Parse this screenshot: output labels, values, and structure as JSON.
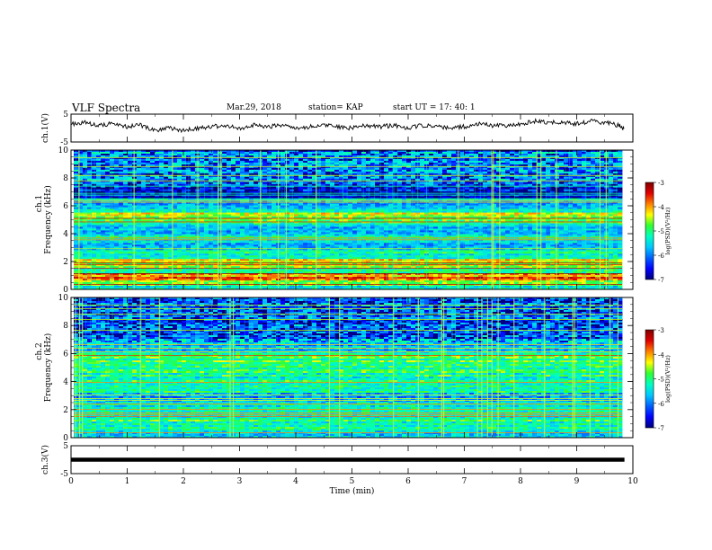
{
  "header": {
    "title": "VLF Spectra",
    "date": "Mar.29, 2018",
    "station": "station= KAP",
    "start": "start UT =   17: 40: 1"
  },
  "colors": {
    "colormap": [
      "#00007a",
      "#0000ff",
      "#0060ff",
      "#00c8ff",
      "#00ffc0",
      "#30ff30",
      "#ffff00",
      "#ff8000",
      "#e00000",
      "#800000"
    ],
    "trace": "#000000",
    "background": "#ffffff"
  },
  "chart_data": [
    {
      "type": "line",
      "panel": "ch1",
      "ylabel": "ch.1(V)",
      "ylim": [
        -5,
        5
      ],
      "yticks": [
        "5",
        "-5"
      ],
      "xlim": [
        0,
        10
      ],
      "x": [
        0,
        0.25,
        0.5,
        0.75,
        1,
        1.25,
        1.5,
        1.75,
        2,
        2.25,
        2.5,
        2.75,
        3,
        3.25,
        3.5,
        3.75,
        4,
        4.25,
        4.5,
        4.75,
        5,
        5.25,
        5.5,
        5.75,
        6,
        6.25,
        6.5,
        6.75,
        7,
        7.25,
        7.5,
        7.75,
        8,
        8.25,
        8.5,
        8.75,
        9,
        9.25,
        9.5,
        9.75,
        9.85
      ],
      "y": [
        1.5,
        2,
        1,
        1.5,
        0.5,
        1,
        -1,
        0,
        -1,
        0,
        0.5,
        1,
        0,
        1,
        0.5,
        1,
        0,
        0.5,
        1,
        0.5,
        0,
        1,
        0.5,
        1,
        0,
        1,
        0.5,
        0,
        0.5,
        1.5,
        1,
        1,
        1.5,
        2.5,
        2,
        2,
        1.5,
        2.5,
        2,
        1,
        -0.5
      ]
    },
    {
      "type": "heatmap",
      "panel": "ch1-spectrogram",
      "ylabel_top": "ch.1",
      "ylabel": "Frequency (kHz)",
      "ylim": [
        0,
        10
      ],
      "yticks": [
        "0",
        "2",
        "4",
        "6",
        "8",
        "10"
      ],
      "xlim": [
        0,
        10
      ],
      "colorbar": {
        "label": "log(PSD)(V²/Hz)",
        "range": [
          -7,
          -3
        ],
        "ticks": [
          "-3",
          "-4",
          "-5",
          "-6",
          "-7"
        ]
      },
      "frequency_bands_khz": [
        {
          "f0": 0,
          "f1": 0.3,
          "level": 0.45
        },
        {
          "f0": 0.3,
          "f1": 0.6,
          "level": 0.58
        },
        {
          "f0": 0.6,
          "f1": 1.2,
          "level": 0.78
        },
        {
          "f0": 1.2,
          "f1": 1.8,
          "level": 0.55
        },
        {
          "f0": 1.8,
          "f1": 2.2,
          "level": 0.62
        },
        {
          "f0": 2.2,
          "f1": 2.8,
          "level": 0.45
        },
        {
          "f0": 2.8,
          "f1": 3.3,
          "level": 0.28
        },
        {
          "f0": 3.3,
          "f1": 4.0,
          "level": 0.42
        },
        {
          "f0": 4.0,
          "f1": 4.6,
          "level": 0.38
        },
        {
          "f0": 4.6,
          "f1": 5.0,
          "level": 0.5
        },
        {
          "f0": 5.0,
          "f1": 5.5,
          "level": 0.6
        },
        {
          "f0": 5.5,
          "f1": 6.0,
          "level": 0.42
        },
        {
          "f0": 6.0,
          "f1": 6.6,
          "level": 0.35
        },
        {
          "f0": 6.6,
          "f1": 7.4,
          "level": 0.12
        },
        {
          "f0": 7.4,
          "f1": 10.0,
          "level": 0.3
        }
      ]
    },
    {
      "type": "heatmap",
      "panel": "ch2-spectrogram",
      "ylabel_top": "ch.2",
      "ylabel": "Frequency (kHz)",
      "ylim": [
        0,
        10
      ],
      "yticks": [
        "0",
        "2",
        "4",
        "6",
        "8",
        "10"
      ],
      "xlim": [
        0,
        10
      ],
      "colorbar": {
        "label": "log(PSD)(V²/Hz)",
        "range": [
          -7,
          -3
        ],
        "ticks": [
          "-3",
          "-4",
          "-5",
          "-6",
          "-7"
        ]
      },
      "frequency_bands_khz": [
        {
          "f0": 0,
          "f1": 0.5,
          "level": 0.42
        },
        {
          "f0": 0.5,
          "f1": 1.5,
          "level": 0.45
        },
        {
          "f0": 1.5,
          "f1": 2.5,
          "level": 0.42
        },
        {
          "f0": 2.5,
          "f1": 3.2,
          "level": 0.3
        },
        {
          "f0": 3.2,
          "f1": 4.0,
          "level": 0.42
        },
        {
          "f0": 4.0,
          "f1": 5.0,
          "level": 0.45
        },
        {
          "f0": 5.0,
          "f1": 6.0,
          "level": 0.5
        },
        {
          "f0": 6.0,
          "f1": 7.0,
          "level": 0.35
        },
        {
          "f0": 7.0,
          "f1": 10.0,
          "level": 0.28
        }
      ]
    },
    {
      "type": "line",
      "panel": "ch3",
      "ylabel": "ch.3(V)",
      "ylim": [
        -5,
        5
      ],
      "yticks": [
        "5",
        "-5"
      ],
      "xlim": [
        0,
        10
      ],
      "x": [
        0,
        9.85
      ],
      "y": [
        0,
        0
      ]
    }
  ],
  "xaxis": {
    "label": "Time (min)",
    "ticks": [
      "0",
      "1",
      "2",
      "3",
      "4",
      "5",
      "6",
      "7",
      "8",
      "9",
      "10"
    ]
  }
}
